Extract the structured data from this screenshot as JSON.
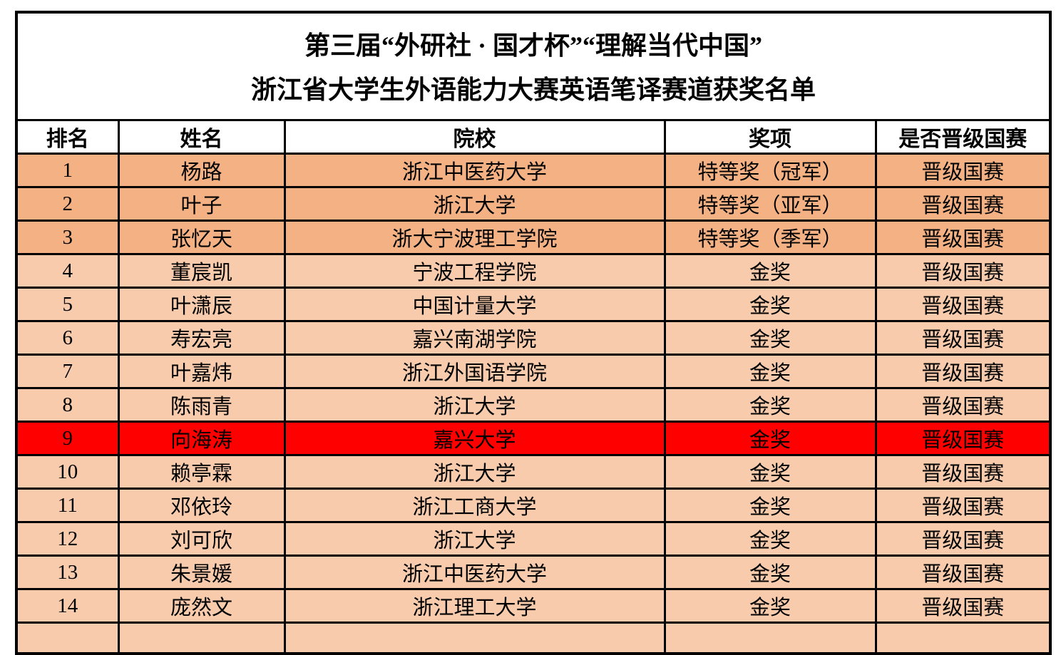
{
  "title": {
    "line1": "第三届“外研社 · 国才杯”“理解当代中国”",
    "line2": "浙江省大学生外语能力大赛英语笔译赛道获奖名单"
  },
  "table": {
    "headers": [
      "排名",
      "姓名",
      "院校",
      "奖项",
      "是否晋级国赛"
    ],
    "rows": [
      {
        "rank": "1",
        "name": "杨路",
        "school": "浙江中医药大学",
        "award": "特等奖（冠军）",
        "national": "晋级国赛",
        "style": "special"
      },
      {
        "rank": "2",
        "name": "叶子",
        "school": "浙江大学",
        "award": "特等奖（亚军）",
        "national": "晋级国赛",
        "style": "special"
      },
      {
        "rank": "3",
        "name": "张忆天",
        "school": "浙大宁波理工学院",
        "award": "特等奖（季军）",
        "national": "晋级国赛",
        "style": "special"
      },
      {
        "rank": "4",
        "name": "董宸凯",
        "school": "宁波工程学院",
        "award": "金奖",
        "national": "晋级国赛",
        "style": "gold"
      },
      {
        "rank": "5",
        "name": "叶潇辰",
        "school": "中国计量大学",
        "award": "金奖",
        "national": "晋级国赛",
        "style": "gold"
      },
      {
        "rank": "6",
        "name": "寿宏亮",
        "school": "嘉兴南湖学院",
        "award": "金奖",
        "national": "晋级国赛",
        "style": "gold"
      },
      {
        "rank": "7",
        "name": "叶嘉炜",
        "school": "浙江外国语学院",
        "award": "金奖",
        "national": "晋级国赛",
        "style": "gold"
      },
      {
        "rank": "8",
        "name": "陈雨青",
        "school": "浙江大学",
        "award": "金奖",
        "national": "晋级国赛",
        "style": "gold"
      },
      {
        "rank": "9",
        "name": "向海涛",
        "school": "嘉兴大学",
        "award": "金奖",
        "national": "晋级国赛",
        "style": "highlight"
      },
      {
        "rank": "10",
        "name": "赖亭霖",
        "school": "浙江大学",
        "award": "金奖",
        "national": "晋级国赛",
        "style": "gold"
      },
      {
        "rank": "11",
        "name": "邓依玲",
        "school": "浙江工商大学",
        "award": "金奖",
        "national": "晋级国赛",
        "style": "gold"
      },
      {
        "rank": "12",
        "name": "刘可欣",
        "school": "浙江大学",
        "award": "金奖",
        "national": "晋级国赛",
        "style": "gold"
      },
      {
        "rank": "13",
        "name": "朱景媛",
        "school": "浙江中医药大学",
        "award": "金奖",
        "national": "晋级国赛",
        "style": "gold"
      },
      {
        "rank": "14",
        "name": "庞然文",
        "school": "浙江理工大学",
        "award": "金奖",
        "national": "晋级国赛",
        "style": "gold"
      }
    ]
  },
  "colors": {
    "special_row_bg": "#F4B183",
    "gold_row_bg": "#F8CBAD",
    "highlight_row_bg": "#FF0000",
    "border": "#000000",
    "text": "#000000",
    "background": "#FFFFFF"
  }
}
